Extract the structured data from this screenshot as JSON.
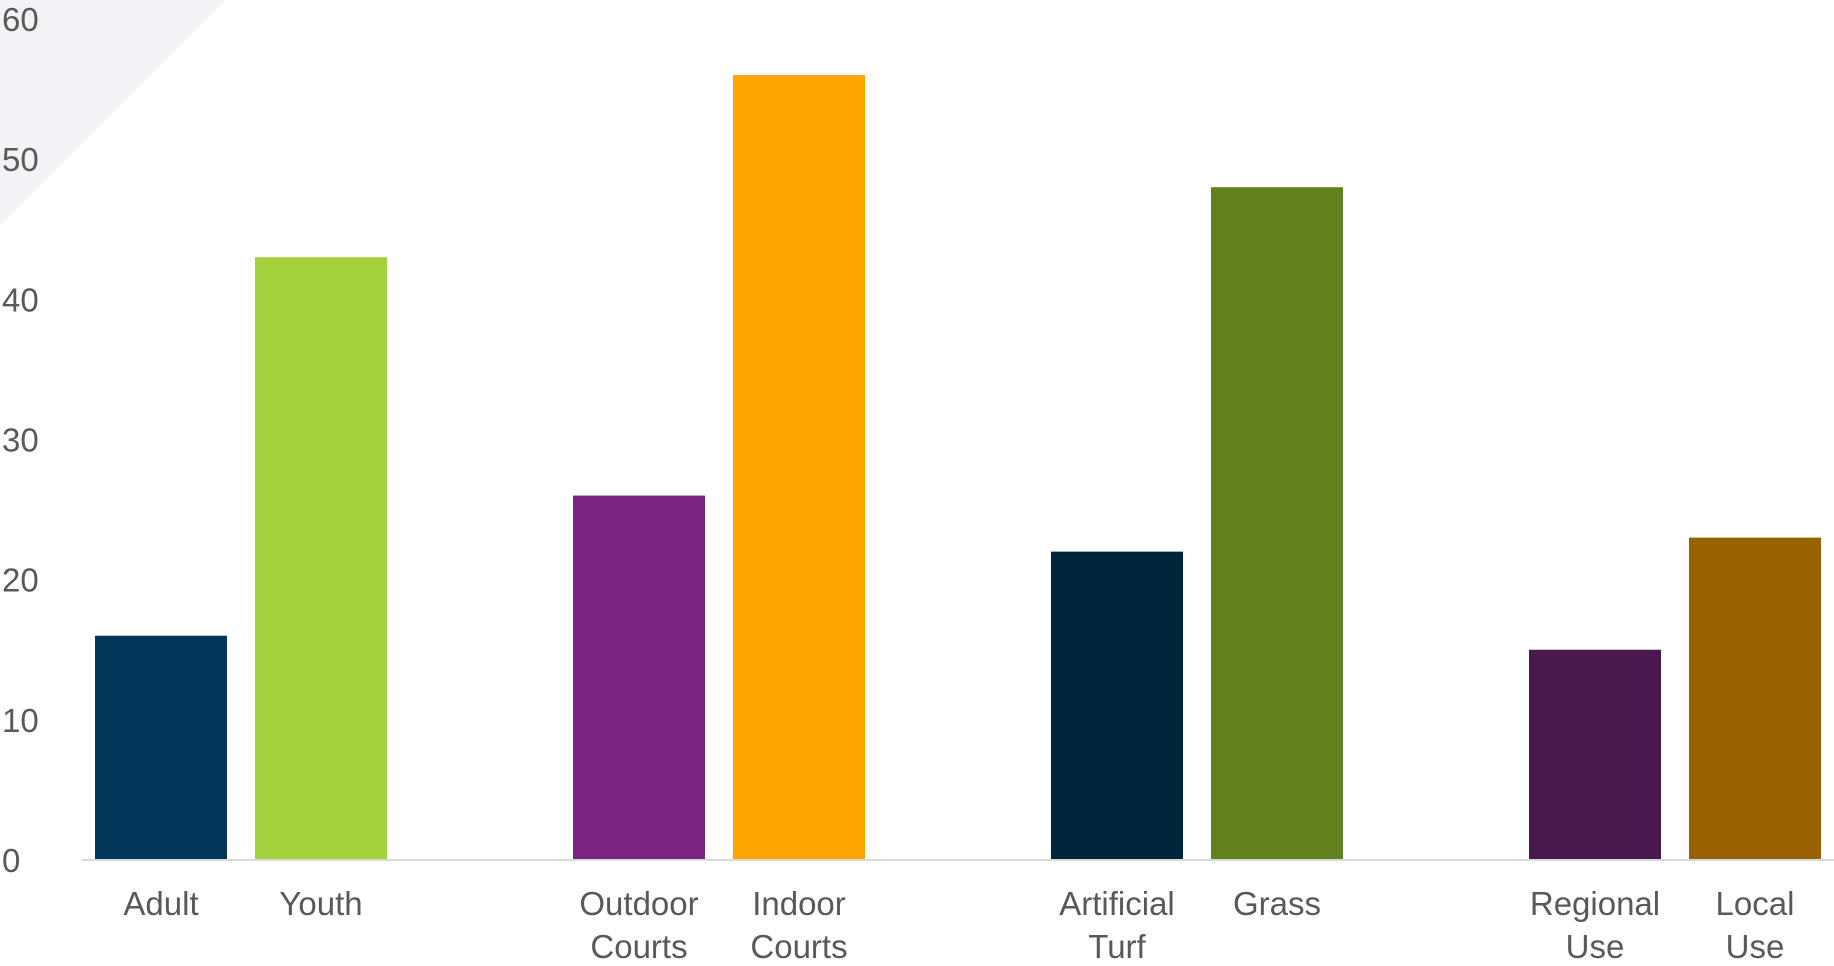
{
  "chart_data": {
    "type": "bar",
    "title": "",
    "xlabel": "",
    "ylabel": "",
    "ylim": [
      0,
      60
    ],
    "yticks": [
      "0",
      "10",
      "20",
      "30",
      "40",
      "50",
      "60"
    ],
    "grid": false,
    "legend": "none",
    "groups": [
      {
        "bars": [
          {
            "label": [
              "Adult"
            ],
            "value": 16,
            "color": "#033759"
          },
          {
            "label": [
              "Youth"
            ],
            "value": 43,
            "color": "#A3D13A"
          }
        ]
      },
      {
        "bars": [
          {
            "label": [
              "Outdoor",
              "Courts"
            ],
            "value": 26,
            "color": "#7A2681"
          },
          {
            "label": [
              "Indoor",
              "Courts"
            ],
            "value": 56,
            "color": "#FFA500"
          }
        ]
      },
      {
        "bars": [
          {
            "label": [
              "Artificial",
              "Turf"
            ],
            "value": 22,
            "color": "#00253A"
          },
          {
            "label": [
              "Grass"
            ],
            "value": 48,
            "color": "#63801E"
          }
        ]
      },
      {
        "bars": [
          {
            "label": [
              "Regional",
              "Use"
            ],
            "value": 15,
            "color": "#4A174E"
          },
          {
            "label": [
              "Local",
              "Use"
            ],
            "value": 23,
            "color": "#996200"
          }
        ]
      }
    ],
    "colors": {
      "background_decoration": "#F1F3F6",
      "axis_line": "#D9D9D9",
      "text": "#595959"
    }
  }
}
